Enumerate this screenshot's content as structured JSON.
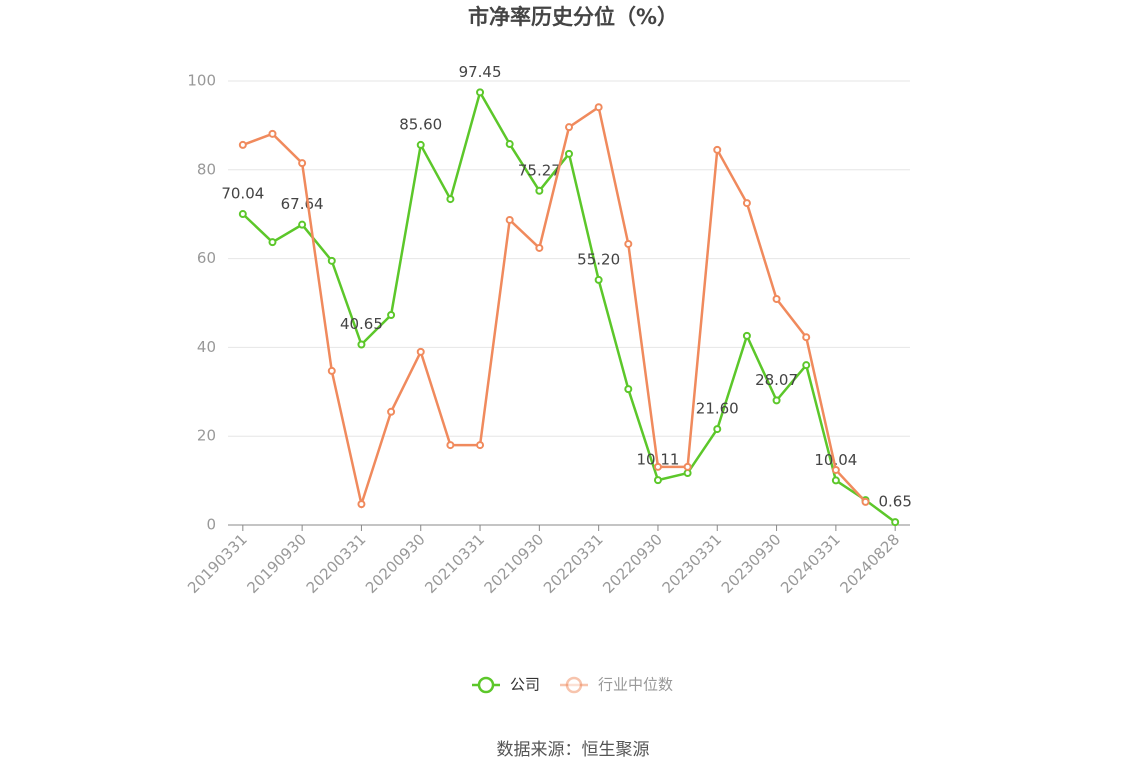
{
  "chart_data": {
    "type": "line",
    "title": "市净率历史分位（%）",
    "categories": [
      "20190331",
      null,
      "20190930",
      null,
      "20200331",
      null,
      "20200930",
      null,
      "20210331",
      null,
      "20210930",
      null,
      "20220331",
      null,
      "20220930",
      null,
      "20230331",
      null,
      "20230930",
      null,
      "20240331",
      null,
      "20240828"
    ],
    "series": [
      {
        "name": "公司",
        "color": "#5cc72a",
        "values": [
          70.04,
          63.7,
          67.64,
          59.5,
          40.65,
          47.3,
          85.6,
          73.4,
          97.45,
          85.8,
          75.27,
          83.6,
          55.2,
          30.6,
          10.11,
          11.7,
          21.6,
          42.6,
          28.07,
          36.0,
          10.04,
          5.6,
          0.65
        ],
        "value_labels": [
          "70.04",
          null,
          "67.64",
          null,
          "40.65",
          null,
          "85.60",
          null,
          "97.45",
          null,
          "75.27",
          null,
          "55.20",
          null,
          "10.11",
          null,
          "21.60",
          null,
          "28.07",
          null,
          "10.04",
          null,
          "0.65"
        ]
      },
      {
        "name": "行业中位数",
        "color": "#f08a5d",
        "values": [
          85.6,
          88.1,
          81.5,
          34.7,
          4.7,
          25.5,
          39.0,
          18.0,
          18.0,
          68.7,
          62.4,
          89.6,
          94.1,
          63.3,
          13.1,
          13.1,
          84.5,
          72.5,
          50.9,
          42.3,
          12.4,
          5.2,
          null
        ]
      }
    ],
    "ylim": [
      0,
      100
    ],
    "yticks": [
      0,
      20,
      40,
      60,
      80,
      100
    ],
    "grid": true,
    "source": "数据来源：恒生聚源"
  }
}
